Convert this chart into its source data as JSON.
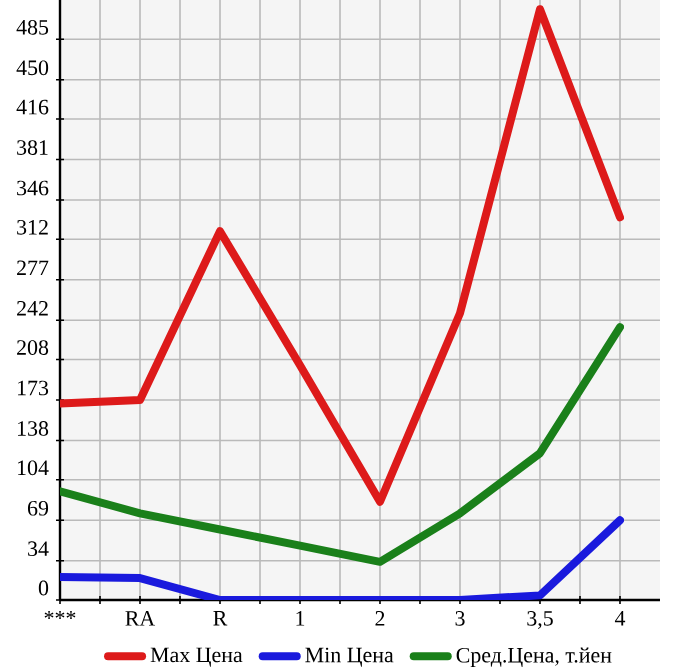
{
  "chart_data": {
    "type": "line",
    "categories": [
      "***",
      "RA",
      "R",
      "1",
      "2",
      "3",
      "3,5",
      "4"
    ],
    "ylim": [
      0,
      519
    ],
    "yticks": [
      0,
      34,
      69,
      104,
      138,
      173,
      208,
      242,
      277,
      312,
      346,
      381,
      416,
      450,
      485
    ],
    "grid": true,
    "legend": "bottom",
    "marker": "none",
    "line_style": "solid",
    "series": [
      {
        "name": "Max Цена",
        "color": "#dd1a1a",
        "values": [
          170,
          173,
          319,
          203,
          85,
          248,
          511,
          331
        ]
      },
      {
        "name": "Min Цена",
        "color": "#1a1add",
        "values": [
          20,
          19,
          0,
          0,
          0,
          0,
          4,
          69
        ]
      },
      {
        "name": "Сред.Цена, т.йен",
        "color": "#1a801a",
        "values": [
          94,
          75,
          61,
          47,
          33,
          75,
          127,
          236
        ]
      }
    ]
  }
}
